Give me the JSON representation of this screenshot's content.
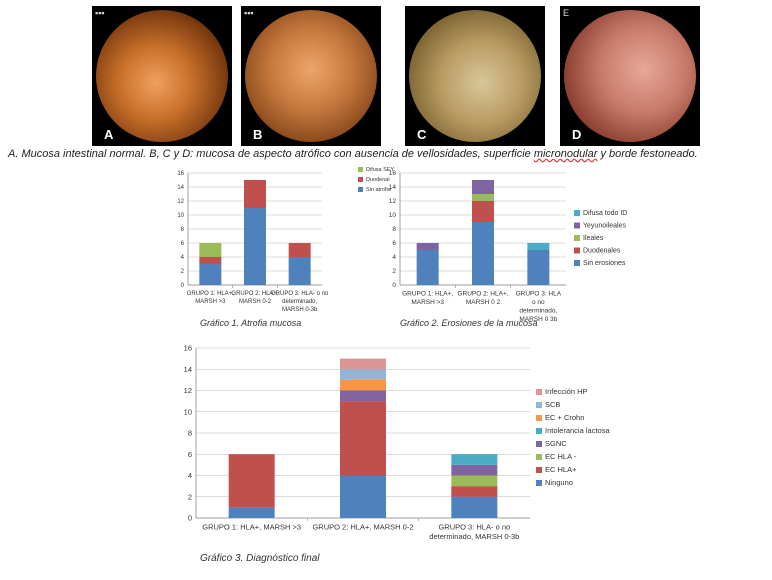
{
  "photos": [
    {
      "label": "A",
      "corner": "▪▪▪",
      "grad": "radial-gradient(circle at 45% 55%, #f0a060 0%, #c8702a 35%, #7a3a10 70%, #2b1205 100%)"
    },
    {
      "label": "B",
      "corner": "▪▪▪",
      "grad": "radial-gradient(circle at 50% 45%, #eea56a 0%, #c87a3e 40%, #8a4a1c 75%, #3a1a08 100%)"
    },
    {
      "label": "C",
      "corner": "",
      "grad": "radial-gradient(circle at 55% 55%, #d8c79a 0%, #b89b62 40%, #7a6230 75%, #2e2410 100%)"
    },
    {
      "label": "D",
      "corner": "E",
      "grad": "radial-gradient(circle at 60% 45%, #e6a89a 0%, #c87a6a 40%, #8a3e30 75%, #3a150e 100%)"
    }
  ],
  "caption": {
    "part1": "A. Mucosa intestinal normal. B, C y D: mucosa de aspecto atrófico con ausencia de vellosidades, superficie ",
    "squiggle": "micronodular",
    "part2": " y borde festoneado."
  },
  "colors": {
    "blue": "#4f81bd",
    "red": "#c0504d",
    "green": "#9bbb59",
    "purple": "#8064a2",
    "teal": "#4bacc6",
    "orange": "#f79646",
    "lightblue": "#95b3d7",
    "pink": "#d99694"
  },
  "chart_data": [
    {
      "type": "bar",
      "stacked": true,
      "title": "Gráfico 1. Atrofia mucosa",
      "categories": [
        [
          "GRUPO 1: HLA+,",
          "MARSH >3"
        ],
        [
          "GRUPO 2: HLA+,",
          "MARSH 0-2"
        ],
        [
          "GRUPO 3: HLA- o no",
          "determinado,",
          "MARSH 0-3b"
        ]
      ],
      "ylim": [
        0,
        16
      ],
      "yticks": [
        0,
        2,
        4,
        6,
        8,
        10,
        12,
        14,
        16
      ],
      "grid": true,
      "legend_position": "top-right",
      "series": [
        {
          "name": "Sin atrofia",
          "color": "blue",
          "values": [
            3,
            11,
            4
          ]
        },
        {
          "name": "Duodenal",
          "color": "red",
          "values": [
            1,
            4,
            2
          ]
        },
        {
          "name": "Difusa SEY",
          "color": "green",
          "values": [
            2,
            0,
            0
          ]
        }
      ]
    },
    {
      "type": "bar",
      "stacked": true,
      "title": "Gráfico 2. Erosiones de la mucosa",
      "categories": [
        [
          "GRUPO 1: HLA+,",
          "MARSH >3"
        ],
        [
          "GRUPO 2: HLA+,",
          "MARSH 0 2"
        ],
        [
          "GRUPO 3: HLA",
          "o no",
          "determinado,",
          "MARSH 0 3b"
        ]
      ],
      "ylim": [
        0,
        16
      ],
      "yticks": [
        0,
        2,
        4,
        6,
        8,
        10,
        12,
        14,
        16
      ],
      "grid": true,
      "legend_position": "right",
      "series": [
        {
          "name": "Sin erosiones",
          "color": "blue",
          "values": [
            5,
            9,
            5
          ]
        },
        {
          "name": "Duodenales",
          "color": "red",
          "values": [
            0,
            3,
            0
          ]
        },
        {
          "name": "Ileales",
          "color": "green",
          "values": [
            0,
            1,
            0
          ]
        },
        {
          "name": "Yeyunoileales",
          "color": "purple",
          "values": [
            1,
            2,
            0
          ]
        },
        {
          "name": "Difusa todo ID",
          "color": "teal",
          "values": [
            0,
            0,
            1
          ]
        }
      ]
    },
    {
      "type": "bar",
      "stacked": true,
      "title": "Gráfico 3. Diagnóstico final",
      "categories": [
        [
          "GRUPO 1: HLA+, MARSH >3"
        ],
        [
          "GRUPO 2: HLA+, MARSH 0-2"
        ],
        [
          "GRUPO 3: HLA- o no",
          "determinado, MARSH  0-3b"
        ]
      ],
      "ylim": [
        0,
        16
      ],
      "yticks": [
        0,
        2,
        4,
        6,
        8,
        10,
        12,
        14,
        16
      ],
      "grid": true,
      "legend_position": "right",
      "series": [
        {
          "name": "Ninguno",
          "color": "blue",
          "values": [
            1,
            4,
            2
          ]
        },
        {
          "name": "EC HLA+",
          "color": "red",
          "values": [
            5,
            7,
            1
          ]
        },
        {
          "name": "EC HLA -",
          "color": "green",
          "values": [
            0,
            0,
            1
          ]
        },
        {
          "name": "SGNC",
          "color": "purple",
          "values": [
            0,
            1,
            1
          ]
        },
        {
          "name": "Intolerancia lactosa",
          "color": "teal",
          "values": [
            0,
            0,
            1
          ]
        },
        {
          "name": "EC + Crohn",
          "color": "orange",
          "values": [
            0,
            1,
            0
          ]
        },
        {
          "name": "SCB",
          "color": "lightblue",
          "values": [
            0,
            1,
            0
          ]
        },
        {
          "name": "Infección HP",
          "color": "pink",
          "values": [
            0,
            1,
            0
          ]
        }
      ]
    }
  ]
}
